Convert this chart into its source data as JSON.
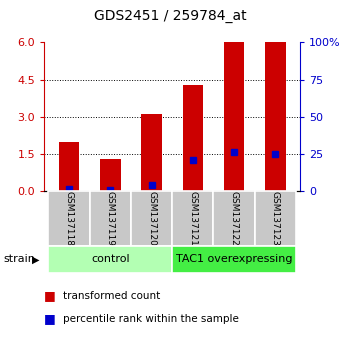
{
  "title": "GDS2451 / 259784_at",
  "samples": [
    "GSM137118",
    "GSM137119",
    "GSM137120",
    "GSM137121",
    "GSM137122",
    "GSM137123"
  ],
  "red_values": [
    2.0,
    1.3,
    3.1,
    4.3,
    6.0,
    6.0
  ],
  "blue_values": [
    0.1,
    0.05,
    0.25,
    1.25,
    1.6,
    1.5
  ],
  "ylim_left": [
    0,
    6
  ],
  "ylim_right": [
    0,
    100
  ],
  "yticks_left": [
    0,
    1.5,
    3,
    4.5,
    6
  ],
  "yticks_right": [
    0,
    25,
    50,
    75,
    100
  ],
  "grid_values": [
    1.5,
    3,
    4.5
  ],
  "left_axis_color": "#cc0000",
  "right_axis_color": "#0000cc",
  "bar_color": "#cc0000",
  "marker_color": "#0000cc",
  "control_label": "control",
  "overexpressing_label": "TAC1 overexpressing",
  "strain_label": "strain",
  "legend_red": "transformed count",
  "legend_blue": "percentile rank within the sample",
  "control_bg": "#b3ffb3",
  "overexpressing_bg": "#44ee44",
  "xticklabels_bg": "#c8c8c8",
  "bar_width": 0.5
}
